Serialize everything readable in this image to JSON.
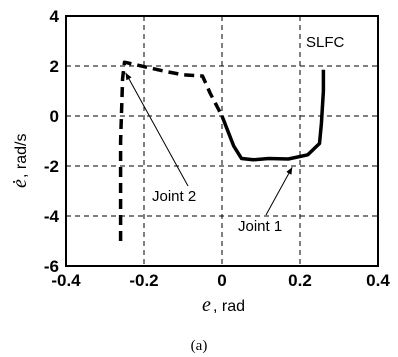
{
  "chart_data": {
    "type": "line",
    "title": "",
    "xlabel_symbol": "e",
    "xlabel_unit": ", rad",
    "ylabel_symbol": "ė",
    "ylabel_unit": ", rad/s",
    "xlim": [
      -0.4,
      0.4
    ],
    "ylim": [
      -6,
      4
    ],
    "x_ticks": [
      -0.4,
      -0.2,
      0,
      0.2,
      0.4
    ],
    "x_tick_labels": [
      "-0.4",
      "-0.2",
      "0",
      "0.2",
      "0.4"
    ],
    "y_ticks": [
      -6,
      -4,
      -2,
      0,
      2,
      4
    ],
    "y_tick_labels": [
      "-6",
      "-4",
      "-2",
      "0",
      "2",
      "4"
    ],
    "grid": true,
    "series": [
      {
        "style": "dashed",
        "points": [
          [
            -0.26,
            -5.0
          ],
          [
            -0.26,
            -1.0
          ],
          [
            -0.255,
            1.5
          ],
          [
            -0.25,
            2.15
          ],
          [
            -0.15,
            1.8
          ],
          [
            -0.1,
            1.65
          ],
          [
            -0.05,
            1.6
          ],
          [
            -0.03,
            0.9
          ],
          [
            -0.01,
            0.3
          ],
          [
            0.0,
            0.0
          ]
        ]
      },
      {
        "style": "solid",
        "points": [
          [
            0.0,
            0.0
          ],
          [
            0.01,
            -0.4
          ],
          [
            0.03,
            -1.2
          ],
          [
            0.05,
            -1.7
          ],
          [
            0.08,
            -1.75
          ],
          [
            0.12,
            -1.7
          ],
          [
            0.17,
            -1.72
          ],
          [
            0.22,
            -1.55
          ],
          [
            0.25,
            -1.1
          ],
          [
            0.255,
            -0.3
          ],
          [
            0.26,
            1.0
          ],
          [
            0.26,
            1.85
          ]
        ]
      }
    ],
    "annotations": [
      {
        "text": "Joint 2",
        "target": [
          -0.26,
          2.05
        ]
      },
      {
        "text": "Joint 1",
        "target": [
          0.18,
          -2.05
        ]
      },
      {
        "text": "SLFC"
      }
    ]
  },
  "panel_label": "(a)"
}
